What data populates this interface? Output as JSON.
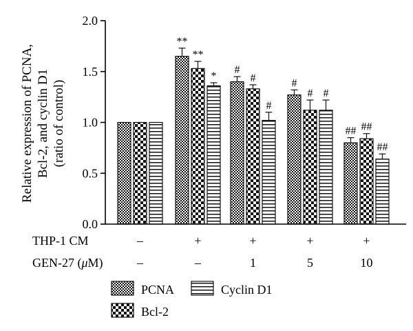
{
  "chart_data": {
    "type": "bar",
    "ylabel_lines": [
      "Relative expression of PCNA,",
      "Bcl-2, and cyclin D1",
      "(ratio of control)"
    ],
    "ylim": [
      0,
      2.0
    ],
    "yticks": [
      "0.0",
      "0.5",
      "1.0",
      "1.5",
      "2.0"
    ],
    "grid": false,
    "legend_position": "bottom",
    "groups": 5,
    "series": [
      {
        "name": "PCNA",
        "pattern": "checker-fine",
        "values": [
          1.0,
          1.65,
          1.4,
          1.27,
          0.8
        ],
        "errors": [
          0,
          0.08,
          0.05,
          0.05,
          0.05
        ],
        "significance": [
          "",
          "**",
          "#",
          "#",
          "##"
        ]
      },
      {
        "name": "Bcl-2",
        "pattern": "checker-bold",
        "values": [
          1.0,
          1.53,
          1.33,
          1.12,
          0.84
        ],
        "errors": [
          0,
          0.07,
          0.04,
          0.1,
          0.05
        ],
        "significance": [
          "",
          "**",
          "#",
          "#",
          "##"
        ]
      },
      {
        "name": "Cyclin D1",
        "pattern": "horizontal-lines",
        "values": [
          1.0,
          1.36,
          1.02,
          1.12,
          0.64
        ],
        "errors": [
          0,
          0.03,
          0.08,
          0.1,
          0.05
        ],
        "significance": [
          "",
          "*",
          "#",
          "#",
          "##"
        ]
      }
    ],
    "conditions": [
      {
        "label": "THP-1 CM",
        "values": [
          "–",
          "+",
          "+",
          "+",
          "+"
        ]
      },
      {
        "label_prefix": "GEN-27 (",
        "label_mu": "μ",
        "label_suffix": "M)",
        "values": [
          "–",
          "–",
          "1",
          "5",
          "10"
        ]
      }
    ]
  }
}
